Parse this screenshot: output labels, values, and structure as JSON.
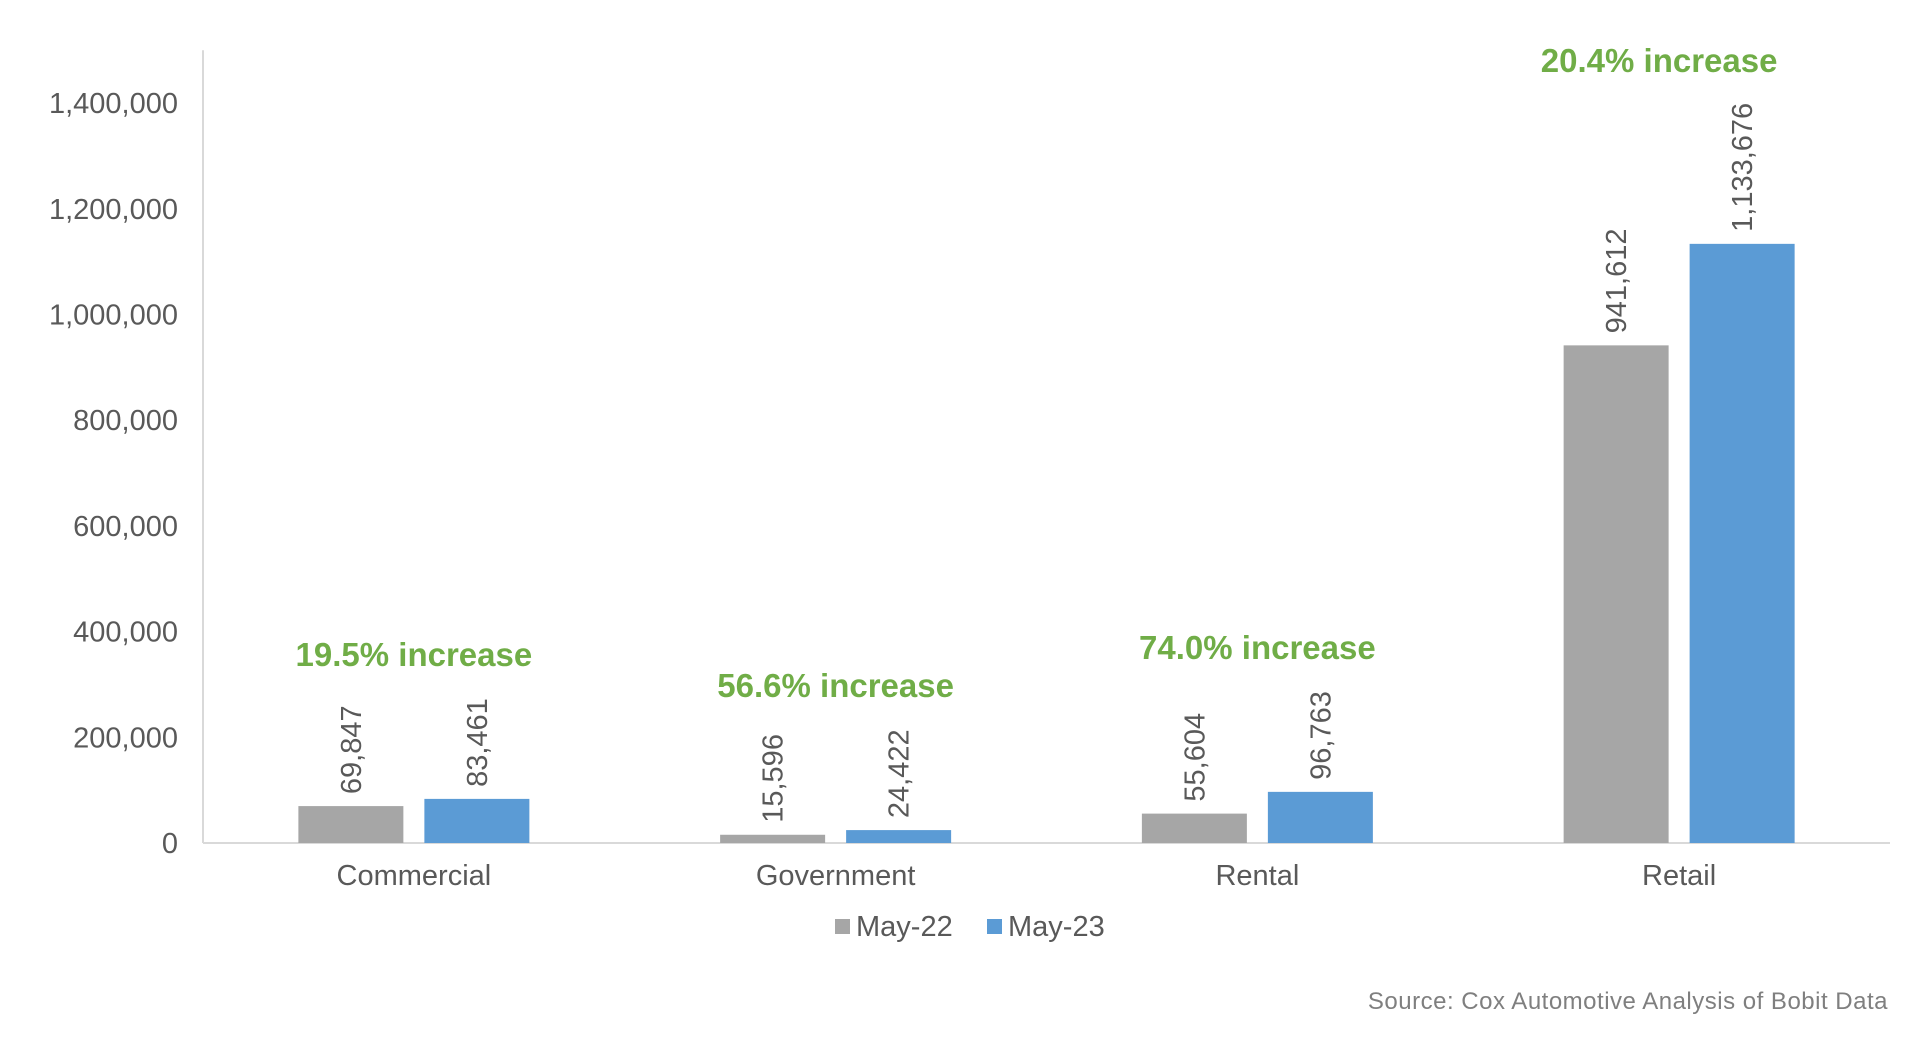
{
  "colors": {
    "may22": "#a6a6a6",
    "may23": "#5b9bd5",
    "increase_text": "#70ad47",
    "axis_text": "#595959",
    "axis_line": "#d9d9d9"
  },
  "chart_data": {
    "type": "bar",
    "categories": [
      "Commercial",
      "Government",
      "Rental",
      "Retail"
    ],
    "series": [
      {
        "name": "May-22",
        "values": [
          69847,
          15596,
          55604,
          941612
        ]
      },
      {
        "name": "May-23",
        "values": [
          83461,
          24422,
          96763,
          1133676
        ]
      }
    ],
    "data_labels": [
      [
        "69,847",
        "15,596",
        "55,604",
        "941,612"
      ],
      [
        "83,461",
        "24,422",
        "96,763",
        "1,133,676"
      ]
    ],
    "annotations": [
      "19.5% increase",
      "56.6% increase",
      "74.0% increase",
      "20.4% increase"
    ],
    "yticks": [
      0,
      200000,
      400000,
      600000,
      800000,
      1000000,
      1200000,
      1400000
    ],
    "ytick_labels": [
      "0",
      "200,000",
      "400,000",
      "600,000",
      "800,000",
      "1,000,000",
      "1,200,000",
      "1,400,000"
    ],
    "ylim": [
      0,
      1500000
    ],
    "legend_position": "bottom",
    "grid": false
  },
  "source": "Source: Cox Automotive Analysis of Bobit Data"
}
